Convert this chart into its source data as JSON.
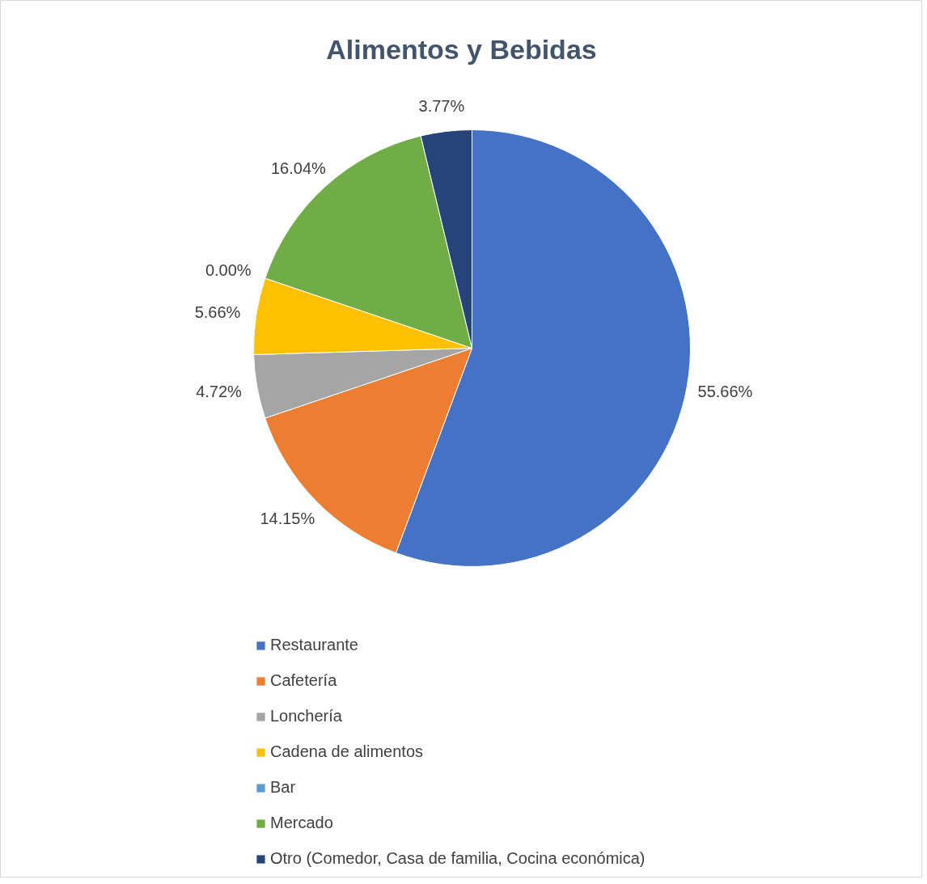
{
  "chart_data": {
    "type": "pie",
    "title": "Alimentos y Bebidas",
    "categories": [
      "Restaurante",
      "Cafetería",
      "Lonchería",
      "Cadena de alimentos",
      "Bar",
      "Mercado",
      "Otro (Comedor, Casa de familia, Cocina económica)"
    ],
    "values": [
      55.66,
      14.15,
      4.72,
      5.66,
      0.0,
      16.04,
      3.77
    ],
    "colors": [
      "#4472c4",
      "#ed7d31",
      "#a5a5a5",
      "#ffc000",
      "#5b9bd5",
      "#70ad47",
      "#264478"
    ],
    "value_labels": [
      "55.66%",
      "14.15%",
      "4.72%",
      "5.66%",
      "0.00%",
      "16.04%",
      "3.77%"
    ],
    "legend": "bottom"
  }
}
